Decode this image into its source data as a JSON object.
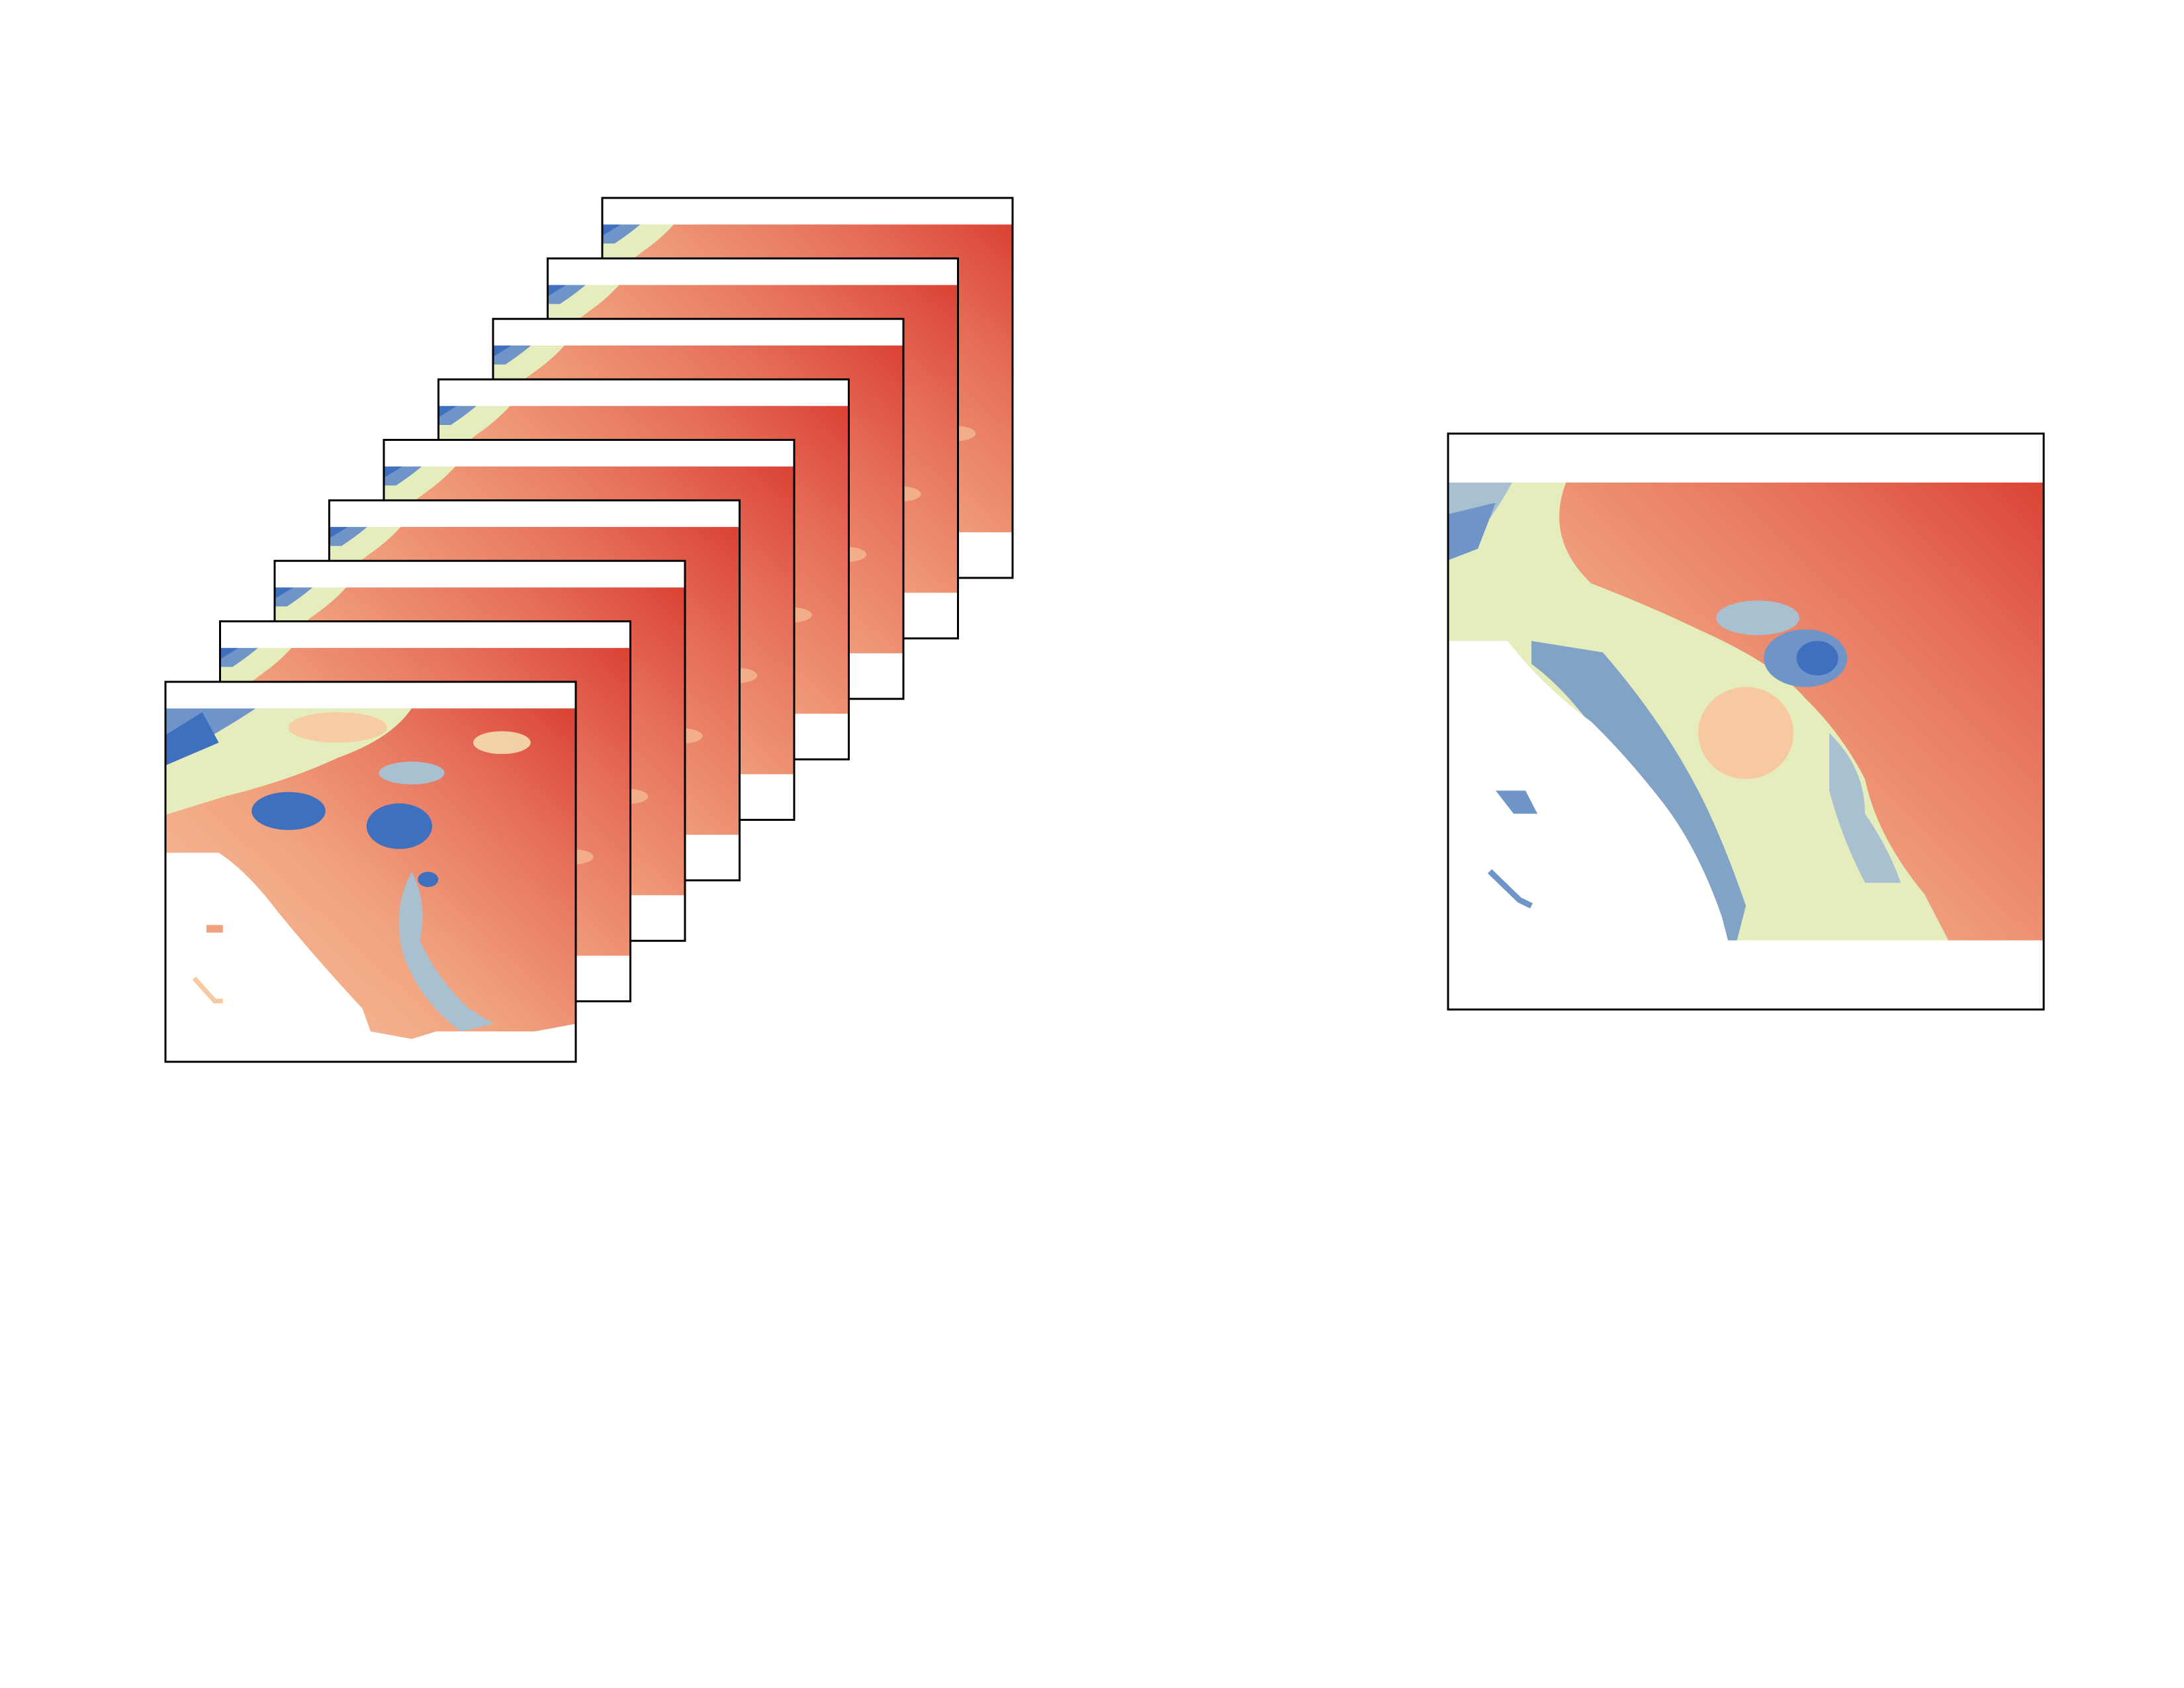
{
  "figure": {
    "stack": {
      "frame_count": 9
    },
    "single": {
      "frame_count": 1
    }
  },
  "colors": {
    "palette": [
      "#3f6fbf",
      "#6f95c8",
      "#a8c0cf",
      "#e6edbd",
      "#f6efbd",
      "#f7c9a0",
      "#f1a37f",
      "#e6705a",
      "#d83a2d"
    ],
    "background": "#ffffff",
    "border": "#000000"
  }
}
